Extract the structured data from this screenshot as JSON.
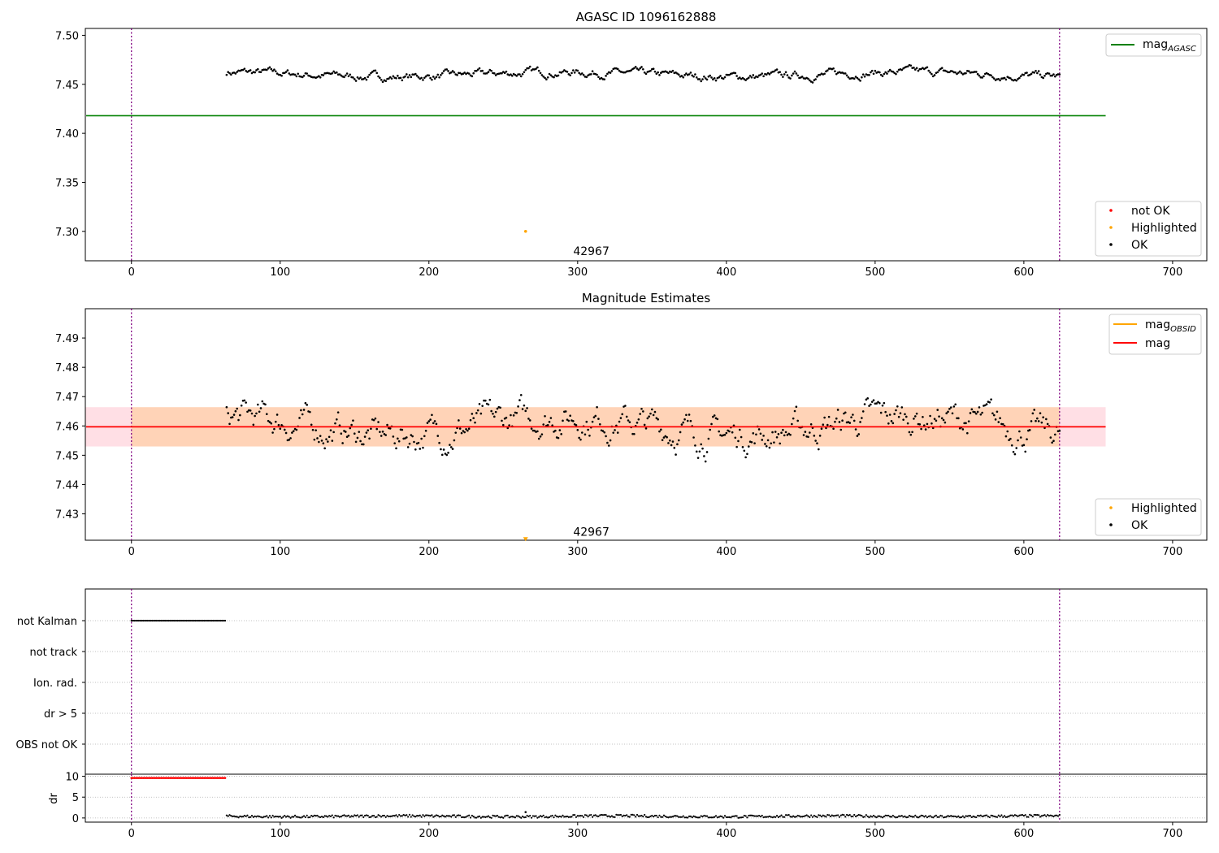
{
  "chart_data": [
    {
      "type": "scatter",
      "title": "AGASC ID 1096162888",
      "xlabel": "",
      "ylabel": "",
      "xlim": [
        -31,
        723
      ],
      "ylim": [
        7.27,
        7.507
      ],
      "x_ticks": [
        0,
        100,
        200,
        300,
        400,
        500,
        600,
        700
      ],
      "y_ticks": [
        7.3,
        7.35,
        7.4,
        7.45,
        7.5
      ],
      "y_tick_labels": [
        "7.30",
        "7.35",
        "7.40",
        "7.45",
        "7.50"
      ],
      "vlines": [
        0,
        624
      ],
      "mag_agasc": 7.418,
      "mag_agasc_xrange": [
        -31,
        655
      ],
      "ok_series": {
        "x_start": 64,
        "x_end": 624,
        "step": 1,
        "level": 7.46,
        "amplitude": 0.006,
        "min": 7.442,
        "max": 7.478
      },
      "highlighted_points": [
        {
          "x": 265,
          "y": 7.3
        }
      ],
      "annotation": {
        "text": "42967",
        "x": 297,
        "y": 7.276
      },
      "legend_lines": [
        {
          "label_main": "mag",
          "label_sub": "AGASC",
          "color": "#008000"
        }
      ],
      "legend_markers": [
        {
          "label": "not OK",
          "color": "#ff0000"
        },
        {
          "label": "Highlighted",
          "color": "#ffa500"
        },
        {
          "label": "OK",
          "color": "#000000"
        }
      ],
      "legend_lines_position": "top-right",
      "legend_markers_position": "bottom-right"
    },
    {
      "type": "scatter",
      "title": "Magnitude Estimates",
      "xlabel": "",
      "ylabel": "",
      "xlim": [
        -31,
        723
      ],
      "ylim": [
        7.421,
        7.5
      ],
      "x_ticks": [
        0,
        100,
        200,
        300,
        400,
        500,
        600,
        700
      ],
      "y_ticks": [
        7.43,
        7.44,
        7.45,
        7.46,
        7.47,
        7.48,
        7.49
      ],
      "y_tick_labels": [
        "7.43",
        "7.44",
        "7.45",
        "7.46",
        "7.47",
        "7.48",
        "7.49"
      ],
      "vlines": [
        0,
        624
      ],
      "mag": 7.4597,
      "mag_obsid": 7.4597,
      "mag_band": [
        7.453,
        7.4664
      ],
      "obsid_band": [
        7.453,
        7.4664
      ],
      "band_xrange": [
        -31,
        655
      ],
      "obsid_band_xrange": [
        0,
        624
      ],
      "ok_series": {
        "x_start": 64,
        "x_end": 624,
        "step": 1,
        "level": 7.46,
        "amplitude": 0.008,
        "min": 7.441,
        "max": 7.478
      },
      "highlighted_points": [
        {
          "x": 265,
          "y": 7.4215
        }
      ],
      "annotation": {
        "text": "42967",
        "x": 297,
        "y": 7.4225
      },
      "legend_lines": [
        {
          "label_main": "mag",
          "label_sub": "OBSID",
          "color": "#ffa500"
        },
        {
          "label_main": "mag",
          "label_sub": "",
          "color": "#ff0000"
        }
      ],
      "legend_markers": [
        {
          "label": "Highlighted",
          "color": "#ffa500"
        },
        {
          "label": "OK",
          "color": "#000000"
        }
      ],
      "legend_lines_position": "top-right",
      "legend_markers_position": "bottom-right"
    },
    {
      "type": "scatter",
      "title": "",
      "xlabel": "",
      "ylabel": "",
      "xlim": [
        -31,
        723
      ],
      "categories": [
        "not Kalman",
        "not track",
        "Ion. rad.",
        "dr > 5",
        "OBS not OK"
      ],
      "flags": [
        {
          "category": "not Kalman",
          "x_start": 0,
          "x_end": 63
        }
      ],
      "vlines": [
        0,
        624
      ],
      "grid": true
    },
    {
      "type": "scatter",
      "title": "",
      "xlabel": "",
      "ylabel": "dr",
      "xlim": [
        -31,
        723
      ],
      "ylim": [
        -1,
        10.5
      ],
      "x_ticks": [
        0,
        100,
        200,
        300,
        400,
        500,
        600,
        700
      ],
      "y_ticks": [
        0,
        5,
        10
      ],
      "y_tick_labels": [
        "0",
        "5",
        "10"
      ],
      "vlines": [
        0,
        624
      ],
      "not_ok_series": {
        "x_start": 0,
        "x_end": 63,
        "step": 1,
        "value": 9.6
      },
      "ok_series": {
        "x_start": 64,
        "x_end": 624,
        "step": 1,
        "level": 0.4,
        "amplitude": 0.3
      },
      "highlighted_points": [
        {
          "x": 265,
          "y": 1.4
        }
      ]
    }
  ]
}
